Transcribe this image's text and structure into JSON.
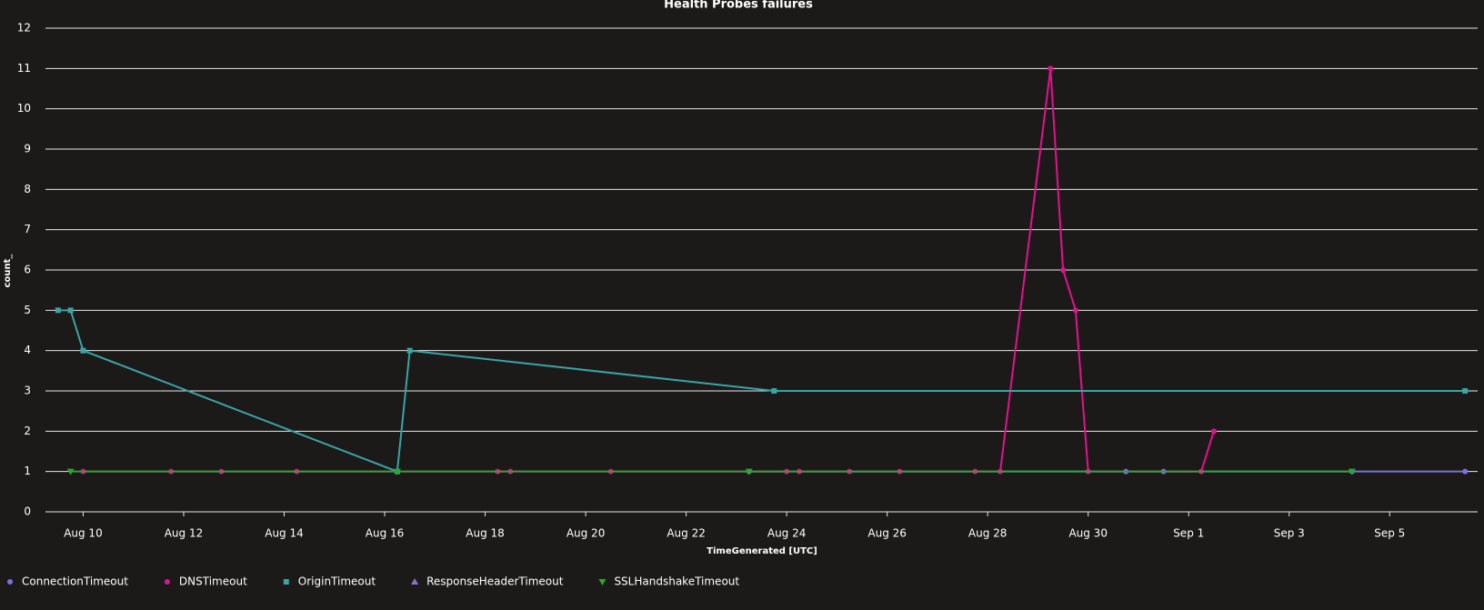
{
  "chart_data": {
    "type": "line",
    "title": "Health Probes failures",
    "x_label": "TimeGenerated [UTC]",
    "y_label": "count_",
    "xlim": [
      "Aug 9 06:00",
      "Sep 6 18:00"
    ],
    "xticks": [
      "Aug 10",
      "Aug 12",
      "Aug 14",
      "Aug 16",
      "Aug 18",
      "Aug 20",
      "Aug 22",
      "Aug 24",
      "Aug 26",
      "Aug 28",
      "Aug 30",
      "Sep 1",
      "Sep 3",
      "Sep 5"
    ],
    "ylim": [
      0,
      12
    ],
    "yticks": [
      0,
      1,
      2,
      3,
      4,
      5,
      6,
      7,
      8,
      9,
      10,
      11,
      12
    ],
    "grid": true,
    "legend": "bottom",
    "series": [
      {
        "name": "ConnectionTimeout",
        "color": "#7a70e8",
        "marker": "circle",
        "x": [
          "Aug 23 06:00",
          "Aug 30 18:00",
          "Aug 31 12:00",
          "Sep 4 06:00",
          "Sep 6 12:00"
        ],
        "values": [
          1,
          1,
          1,
          1,
          1
        ]
      },
      {
        "name": "DNSTimeout",
        "color": "#e3128f",
        "marker": "circle",
        "x": [
          "Aug 10 00:00",
          "Aug 11 18:00",
          "Aug 12 18:00",
          "Aug 14 06:00",
          "Aug 18 06:00",
          "Aug 18 12:00",
          "Aug 20 12:00",
          "Aug 24 00:00",
          "Aug 24 06:00",
          "Aug 25 06:00",
          "Aug 26 06:00",
          "Aug 27 18:00",
          "Aug 28 06:00",
          "Aug 29 06:00",
          "Aug 29 12:00",
          "Aug 29 18:00",
          "Aug 30 00:00",
          "Sep 1 06:00",
          "Sep 1 12:00"
        ],
        "values": [
          1,
          1,
          1,
          1,
          1,
          1,
          1,
          1,
          1,
          1,
          1,
          1,
          1,
          11,
          6,
          5,
          1,
          1,
          2
        ]
      },
      {
        "name": "OriginTimeout",
        "color": "#3aa4a6",
        "marker": "square",
        "x": [
          "Aug 9 12:00",
          "Aug 9 18:00",
          "Aug 10 00:00",
          "Aug 16 06:00",
          "Aug 16 12:00",
          "Aug 23 18:00",
          "Sep 6 12:00"
        ],
        "values": [
          5,
          5,
          4,
          1,
          4,
          3,
          3
        ]
      },
      {
        "name": "ResponseHeaderTimeout",
        "color": "#8b6fd6",
        "marker": "triangle",
        "x": [],
        "values": []
      },
      {
        "name": "SSLHandshakeTimeout",
        "color": "#2ea52e",
        "marker": "triangle-down",
        "x": [
          "Aug 9 18:00",
          "Aug 16 06:00",
          "Aug 23 06:00",
          "Sep 4 06:00"
        ],
        "values": [
          1,
          1,
          1,
          1
        ]
      }
    ]
  }
}
